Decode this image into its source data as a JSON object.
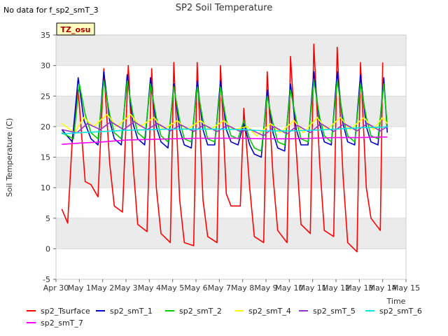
{
  "note": "No data for f_sp2_smT_3",
  "chart_data": {
    "type": "line",
    "title": "SP2 Soil Temperature",
    "xlabel": "Time",
    "ylabel": "Soil Temperature (C)",
    "ylim": [
      -5,
      35
    ],
    "yticks": [
      -5,
      0,
      5,
      10,
      15,
      20,
      25,
      30,
      35
    ],
    "xlim": [
      0,
      15
    ],
    "xticks": [
      0,
      1,
      2,
      3,
      4,
      5,
      6,
      7,
      8,
      9,
      10,
      11,
      12,
      13,
      14,
      15
    ],
    "xtick_labels": [
      "Apr 30",
      "May 1",
      "May 2",
      "May 3",
      "May 4",
      "May 5",
      "May 6",
      "May 7",
      "May 8",
      "May 9",
      "May 10",
      "May 11",
      "May 12",
      "May 13",
      "May 14",
      "May 15"
    ],
    "grid": "horizontal bands",
    "annotation": "TZ_osu",
    "legend_position": "bottom",
    "series": [
      {
        "name": "sp2_Tsurface",
        "color": "#ff0000",
        "x": [
          0.25,
          0.5,
          0.7,
          0.95,
          1.25,
          1.5,
          1.8,
          2.05,
          2.3,
          2.5,
          2.85,
          3.1,
          3.3,
          3.5,
          3.9,
          4.1,
          4.3,
          4.5,
          4.9,
          5.05,
          5.3,
          5.5,
          5.9,
          6.05,
          6.3,
          6.5,
          6.9,
          7.05,
          7.3,
          7.5,
          7.9,
          8.05,
          8.3,
          8.5,
          8.9,
          9.05,
          9.3,
          9.5,
          9.9,
          10.05,
          10.3,
          10.5,
          10.9,
          11.05,
          11.3,
          11.5,
          11.9,
          12.05,
          12.3,
          12.5,
          12.9,
          13.05,
          13.3,
          13.5,
          13.9,
          14.0
        ],
        "values": [
          6.5,
          4.2,
          18,
          26,
          11,
          10.5,
          8.5,
          29.5,
          14,
          7,
          6,
          30,
          14,
          4,
          2.8,
          29.5,
          10,
          2.5,
          1,
          30.5,
          8,
          1,
          0.5,
          30.5,
          8,
          2,
          1,
          30,
          9,
          7,
          7,
          23,
          10,
          2,
          1,
          29,
          12,
          3,
          1,
          31.5,
          16,
          4,
          2.5,
          33.5,
          14,
          3,
          2,
          33,
          12,
          1,
          -0.5,
          30.5,
          10,
          5,
          3,
          30.5
        ]
      },
      {
        "name": "sp2_smT_1",
        "color": "#0000cc",
        "x": [
          0.25,
          0.7,
          0.95,
          1.2,
          1.5,
          1.8,
          2.05,
          2.3,
          2.5,
          2.8,
          3.05,
          3.3,
          3.5,
          3.8,
          4.05,
          4.3,
          4.5,
          4.8,
          5.05,
          5.3,
          5.5,
          5.8,
          6.05,
          6.3,
          6.5,
          6.8,
          7.05,
          7.3,
          7.5,
          7.8,
          8.05,
          8.3,
          8.5,
          8.8,
          9.05,
          9.3,
          9.5,
          9.8,
          10.05,
          10.3,
          10.5,
          10.8,
          11.05,
          11.3,
          11.5,
          11.8,
          12.05,
          12.3,
          12.5,
          12.8,
          13.05,
          13.3,
          13.5,
          13.8,
          14.05,
          14.2
        ],
        "values": [
          19.5,
          17.5,
          28,
          21,
          18,
          17,
          29,
          21,
          18,
          17,
          28.5,
          20.5,
          18,
          17,
          28,
          20,
          17.5,
          16.5,
          27,
          19.5,
          17,
          16.5,
          27.5,
          19.5,
          17,
          17,
          27.5,
          19.5,
          17.5,
          17,
          20.5,
          17,
          15.5,
          15,
          26,
          19,
          16.5,
          16,
          27,
          19.5,
          17,
          17,
          29,
          20.5,
          17.5,
          17,
          29,
          20.5,
          17.5,
          17,
          28.5,
          20,
          17.5,
          17,
          28,
          19
        ]
      },
      {
        "name": "sp2_smT_2",
        "color": "#00cc00",
        "x": [
          0.25,
          0.75,
          1.0,
          1.25,
          1.5,
          1.8,
          2.05,
          2.3,
          2.5,
          2.8,
          3.05,
          3.3,
          3.5,
          3.8,
          4.05,
          4.3,
          4.5,
          4.8,
          5.05,
          5.3,
          5.5,
          5.8,
          6.05,
          6.3,
          6.5,
          6.8,
          7.05,
          7.3,
          7.5,
          7.8,
          8.05,
          8.3,
          8.5,
          8.8,
          9.05,
          9.3,
          9.5,
          9.8,
          10.05,
          10.3,
          10.5,
          10.8,
          11.05,
          11.3,
          11.5,
          11.8,
          12.05,
          12.3,
          12.5,
          12.8,
          13.05,
          13.3,
          13.5,
          13.8,
          14.05,
          14.2
        ],
        "values": [
          19,
          18,
          27,
          22,
          19,
          18,
          27.5,
          22,
          19,
          18,
          27.5,
          22,
          19,
          18,
          27,
          21.5,
          18.5,
          17.5,
          26.5,
          21,
          18,
          17.5,
          26.5,
          21,
          18,
          17.5,
          26.5,
          21,
          18.5,
          18,
          21,
          18,
          16.5,
          16,
          25,
          20.5,
          17.5,
          17,
          26,
          21,
          18,
          17.5,
          27.5,
          21.5,
          18.5,
          17.5,
          27.5,
          21.5,
          18.5,
          17.5,
          27,
          21.5,
          18.5,
          18,
          27,
          20
        ]
      },
      {
        "name": "sp2_smT_4",
        "color": "#ffff00",
        "x": [
          0.25,
          0.8,
          1.2,
          1.6,
          2.2,
          2.6,
          3.2,
          3.6,
          4.2,
          4.6,
          5.2,
          5.6,
          6.2,
          6.6,
          7.2,
          7.6,
          8.2,
          8.6,
          9.2,
          9.6,
          10.2,
          10.6,
          11.2,
          11.6,
          12.2,
          12.6,
          13.2,
          13.6,
          14.0,
          14.2
        ],
        "values": [
          20.5,
          19,
          21.5,
          20,
          22,
          20,
          22,
          20,
          21.5,
          19.5,
          21,
          19.5,
          21,
          19.5,
          21,
          19.5,
          20,
          18.5,
          20.5,
          19,
          21,
          19,
          21.5,
          19.5,
          21.5,
          19.5,
          21.5,
          19.5,
          21.5,
          20.5
        ]
      },
      {
        "name": "sp2_smT_5",
        "color": "#9933cc",
        "x": [
          0.25,
          0.9,
          1.35,
          1.9,
          2.35,
          2.9,
          3.35,
          3.9,
          4.35,
          4.9,
          5.35,
          5.9,
          6.35,
          6.9,
          7.35,
          7.9,
          8.35,
          8.9,
          9.35,
          9.9,
          10.35,
          10.9,
          11.35,
          11.9,
          12.35,
          12.9,
          13.35,
          13.9,
          14.2
        ],
        "values": [
          19.5,
          19,
          20.5,
          19.5,
          20.8,
          19.5,
          20.8,
          19.5,
          20.5,
          19.3,
          20.3,
          19.2,
          20.3,
          19.2,
          20.2,
          19.2,
          19.5,
          18.5,
          20,
          18.8,
          20.2,
          19,
          20.5,
          19.2,
          20.5,
          19.3,
          20.5,
          19.3,
          20
        ]
      },
      {
        "name": "sp2_smT_6",
        "color": "#00e5e5",
        "x": [
          0.25,
          1.0,
          2.0,
          3.0,
          4.0,
          5.0,
          6.0,
          7.0,
          8.0,
          9.0,
          10.0,
          11.0,
          12.0,
          13.0,
          14.0,
          14.2
        ],
        "values": [
          18.8,
          19,
          19.2,
          19.4,
          19.5,
          19.6,
          19.6,
          19.6,
          19.5,
          19.3,
          19.3,
          19.4,
          19.6,
          19.8,
          19.9,
          20
        ]
      },
      {
        "name": "sp2_smT_7",
        "color": "#ff00ff",
        "x": [
          0.25,
          1.0,
          2.0,
          3.0,
          4.0,
          5.0,
          6.0,
          7.0,
          8.0,
          9.0,
          10.0,
          11.0,
          12.0,
          13.0,
          14.0,
          14.2
        ],
        "values": [
          17.1,
          17.3,
          17.5,
          17.8,
          17.9,
          18.0,
          18.1,
          18.1,
          18.1,
          18.0,
          18.0,
          18.1,
          18.2,
          18.2,
          18.3,
          18.3
        ]
      }
    ]
  }
}
